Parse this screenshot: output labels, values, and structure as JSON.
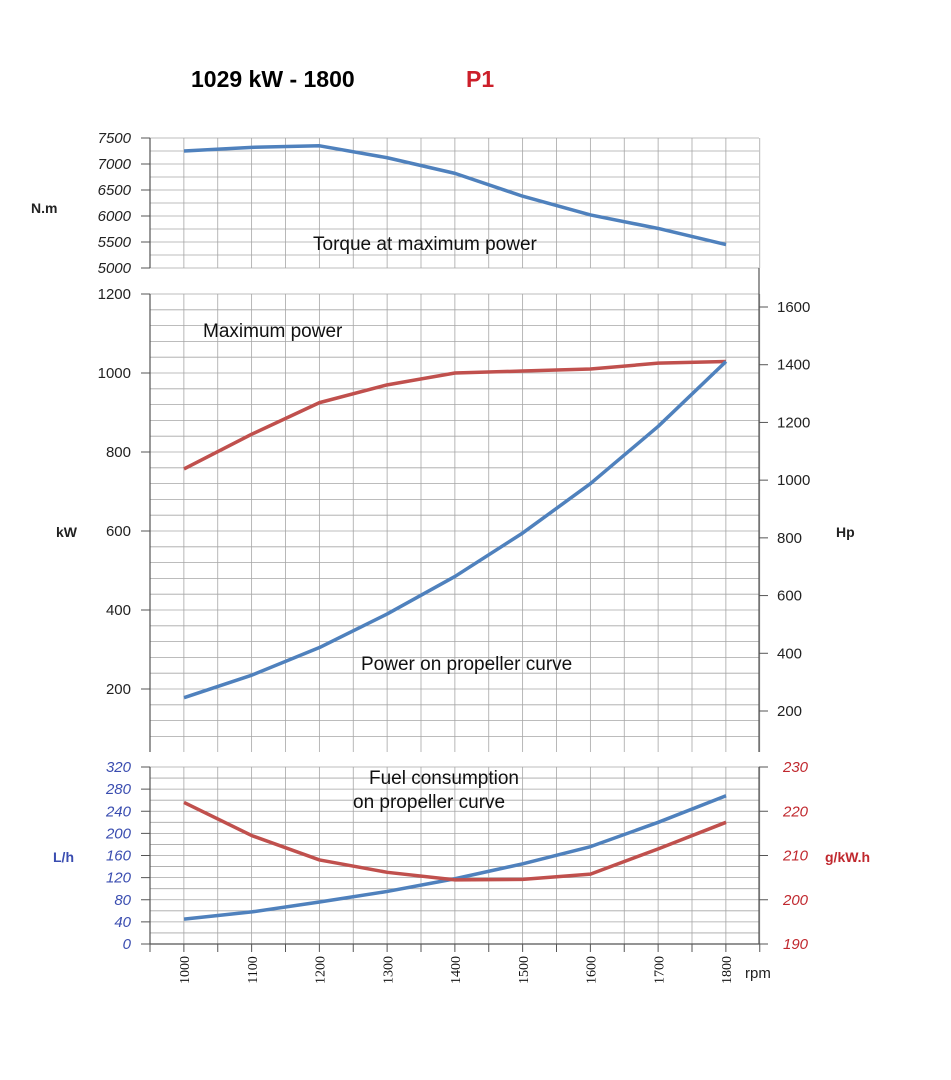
{
  "header": {
    "title": "1029 kW - 1800",
    "tag": "P1",
    "tag_color": "#cc1f2a"
  },
  "colors": {
    "blue": "#4f81bd",
    "red": "#c0504d",
    "grid": "#a6a6a6",
    "fuel_axis_left": "#3a4db0",
    "fuel_axis_right": "#c0282e"
  },
  "chart_data": [
    {
      "type": "line",
      "title": "",
      "annotation": "Torque at maximum power",
      "ylabel": "N.m",
      "ylim": [
        5000,
        7500
      ],
      "yticks": [
        "5000",
        "5500",
        "6000",
        "6500",
        "7000",
        "7500"
      ],
      "x": [
        1000,
        1100,
        1200,
        1300,
        1400,
        1500,
        1600,
        1700,
        1800
      ],
      "series": [
        {
          "color": "#4f81bd",
          "values": [
            7250,
            7320,
            7350,
            7120,
            6820,
            6380,
            6020,
            5760,
            5450
          ]
        }
      ]
    },
    {
      "type": "line",
      "ylabel": "kW",
      "y2label": "Hp",
      "ylim": [
        0,
        1200
      ],
      "yticks": [
        "200",
        "400",
        "600",
        "800",
        "1000",
        "1200"
      ],
      "y2ticks": [
        "200",
        "400",
        "600",
        "800",
        "1000",
        "1200",
        "1400",
        "1600"
      ],
      "x": [
        1000,
        1100,
        1200,
        1300,
        1400,
        1500,
        1600,
        1700,
        1800
      ],
      "series": [
        {
          "label": "Maximum power",
          "color": "#c0504d",
          "values": [
            757,
            845,
            925,
            970,
            1000,
            1005,
            1010,
            1025,
            1029
          ]
        },
        {
          "label": "Power on propeller curve",
          "color": "#4f81bd",
          "values": [
            178,
            235,
            305,
            390,
            485,
            595,
            720,
            865,
            1029
          ]
        }
      ]
    },
    {
      "type": "line",
      "annotation_lines": [
        "Fuel consumption",
        "on propeller curve"
      ],
      "ylabel": "L/h",
      "y2label": "g/kW.h",
      "ylim": [
        0,
        320
      ],
      "y2lim": [
        190,
        230
      ],
      "yticks": [
        "0",
        "40",
        "80",
        "120",
        "160",
        "200",
        "240",
        "280",
        "320"
      ],
      "y2ticks": [
        "190",
        "200",
        "210",
        "220",
        "230"
      ],
      "xlabel": "rpm",
      "x": [
        1000,
        1100,
        1200,
        1300,
        1400,
        1500,
        1600,
        1700,
        1800
      ],
      "xticks": [
        "1000",
        "1100",
        "1200",
        "1300",
        "1400",
        "1500",
        "1600",
        "1700",
        "1800"
      ],
      "series": [
        {
          "axis": "left",
          "color": "#4f81bd",
          "values": [
            45,
            58,
            76,
            95,
            118,
            145,
            176,
            220,
            268
          ]
        },
        {
          "axis": "right",
          "color": "#c0504d",
          "values": [
            222,
            214.5,
            209,
            206.2,
            204.5,
            204.6,
            205.8,
            211.5,
            217.5
          ]
        }
      ]
    }
  ]
}
